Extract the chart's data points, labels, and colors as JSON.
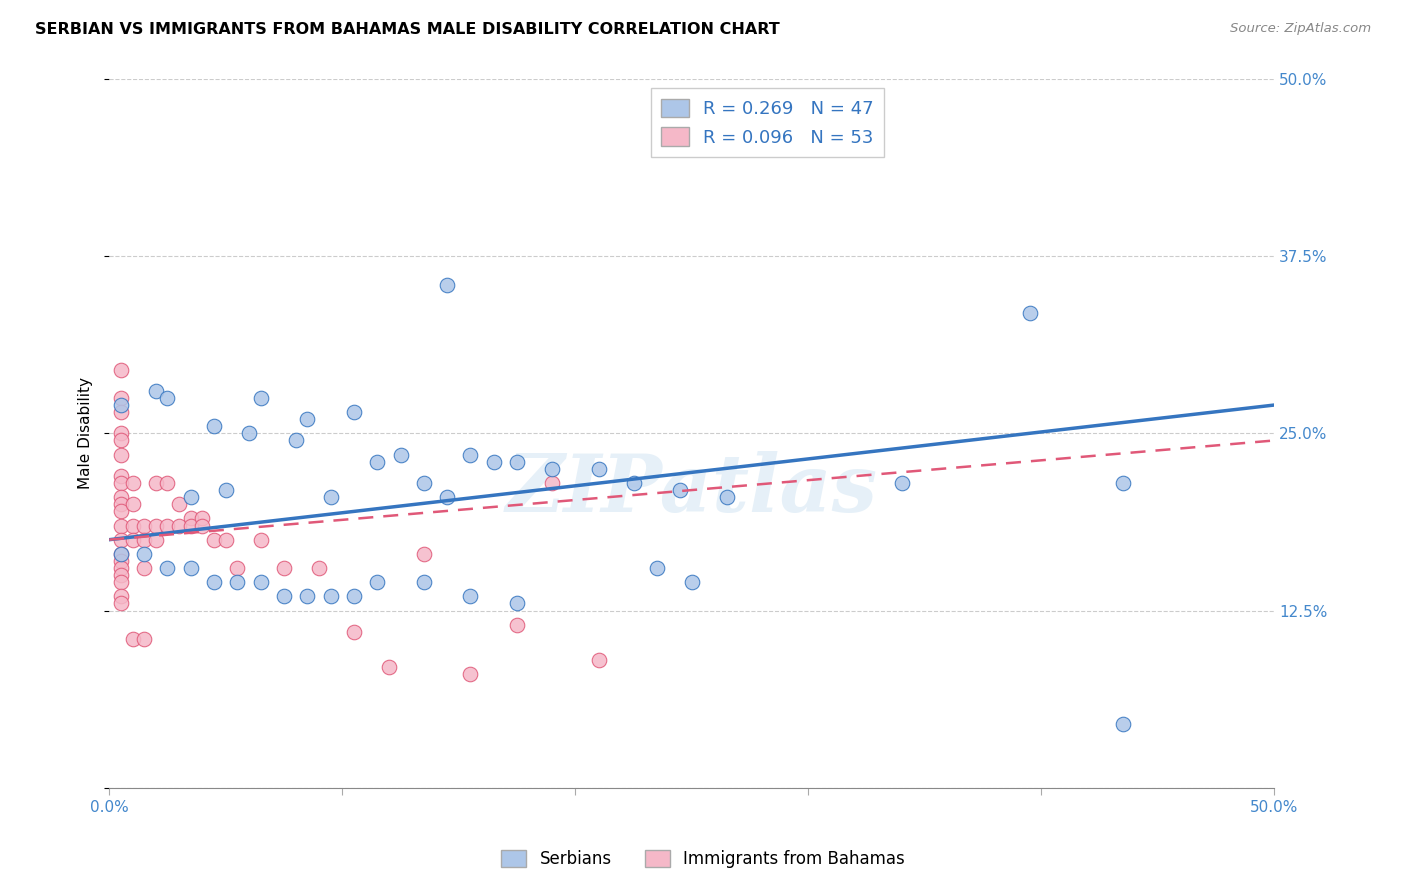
{
  "title": "SERBIAN VS IMMIGRANTS FROM BAHAMAS MALE DISABILITY CORRELATION CHART",
  "source": "Source: ZipAtlas.com",
  "ylabel": "Male Disability",
  "xlim": [
    0.0,
    0.5
  ],
  "ylim": [
    0.0,
    0.5
  ],
  "legend_labels": [
    "Serbians",
    "Immigrants from Bahamas"
  ],
  "blue_R": 0.269,
  "blue_N": 47,
  "pink_R": 0.096,
  "pink_N": 53,
  "blue_color": "#adc6e8",
  "pink_color": "#f5b8c8",
  "blue_line_color": "#3575c0",
  "pink_line_color": "#e05878",
  "watermark": "ZIPatlas",
  "blue_x": [
    0.295,
    0.145,
    0.02,
    0.025,
    0.005,
    0.065,
    0.085,
    0.105,
    0.045,
    0.06,
    0.08,
    0.115,
    0.125,
    0.155,
    0.165,
    0.175,
    0.05,
    0.035,
    0.095,
    0.135,
    0.145,
    0.19,
    0.21,
    0.225,
    0.245,
    0.265,
    0.235,
    0.25,
    0.34,
    0.005,
    0.015,
    0.025,
    0.035,
    0.045,
    0.055,
    0.065,
    0.075,
    0.085,
    0.095,
    0.105,
    0.115,
    0.135,
    0.155,
    0.175,
    0.435,
    0.435,
    0.395
  ],
  "blue_y": [
    0.475,
    0.355,
    0.28,
    0.275,
    0.27,
    0.275,
    0.26,
    0.265,
    0.255,
    0.25,
    0.245,
    0.23,
    0.235,
    0.235,
    0.23,
    0.23,
    0.21,
    0.205,
    0.205,
    0.215,
    0.205,
    0.225,
    0.225,
    0.215,
    0.21,
    0.205,
    0.155,
    0.145,
    0.215,
    0.165,
    0.165,
    0.155,
    0.155,
    0.145,
    0.145,
    0.145,
    0.135,
    0.135,
    0.135,
    0.135,
    0.145,
    0.145,
    0.135,
    0.13,
    0.215,
    0.045,
    0.335
  ],
  "pink_x": [
    0.005,
    0.005,
    0.005,
    0.005,
    0.005,
    0.005,
    0.005,
    0.005,
    0.005,
    0.005,
    0.005,
    0.005,
    0.005,
    0.005,
    0.005,
    0.005,
    0.005,
    0.005,
    0.005,
    0.005,
    0.01,
    0.01,
    0.01,
    0.01,
    0.01,
    0.015,
    0.015,
    0.015,
    0.015,
    0.02,
    0.02,
    0.02,
    0.025,
    0.025,
    0.03,
    0.03,
    0.035,
    0.035,
    0.04,
    0.04,
    0.045,
    0.05,
    0.055,
    0.065,
    0.075,
    0.09,
    0.105,
    0.12,
    0.135,
    0.155,
    0.175,
    0.19,
    0.21
  ],
  "pink_y": [
    0.295,
    0.275,
    0.265,
    0.25,
    0.245,
    0.235,
    0.22,
    0.215,
    0.205,
    0.2,
    0.195,
    0.185,
    0.175,
    0.165,
    0.16,
    0.155,
    0.15,
    0.145,
    0.135,
    0.13,
    0.215,
    0.2,
    0.185,
    0.175,
    0.105,
    0.185,
    0.175,
    0.155,
    0.105,
    0.215,
    0.185,
    0.175,
    0.215,
    0.185,
    0.2,
    0.185,
    0.19,
    0.185,
    0.19,
    0.185,
    0.175,
    0.175,
    0.155,
    0.175,
    0.155,
    0.155,
    0.11,
    0.085,
    0.165,
    0.08,
    0.115,
    0.215,
    0.09
  ]
}
